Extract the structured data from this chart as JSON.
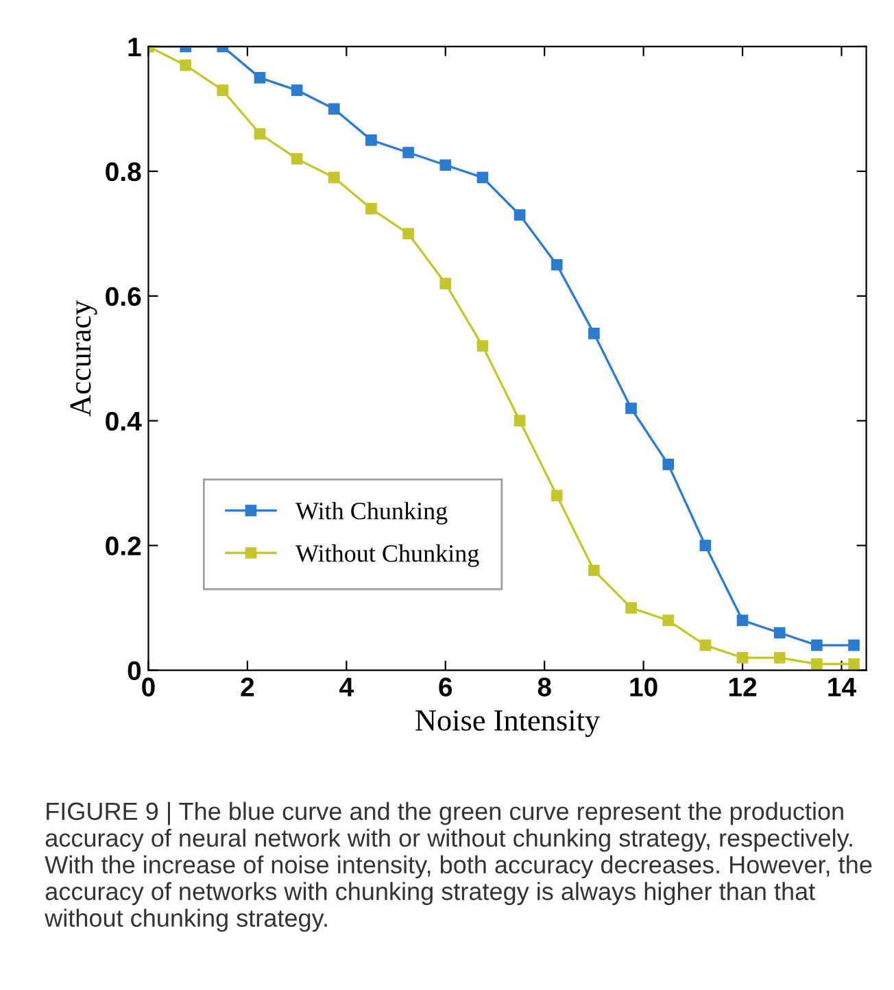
{
  "chart_data": {
    "type": "line",
    "xlabel": "Noise Intensity",
    "ylabel": "Accuracy",
    "x": [
      0,
      0.75,
      1.5,
      2.25,
      3,
      3.75,
      4.5,
      5.25,
      6,
      6.75,
      7.5,
      8.25,
      9,
      9.75,
      10.5,
      11.25,
      12,
      12.75,
      13.5,
      14.25
    ],
    "series": [
      {
        "name": "With Chunking",
        "color": "#2b7bd1",
        "values": [
          1,
          1,
          1,
          0.95,
          0.93,
          0.9,
          0.85,
          0.83,
          0.81,
          0.79,
          0.73,
          0.65,
          0.54,
          0.42,
          0.33,
          0.2,
          0.08,
          0.06,
          0.04,
          0.04
        ]
      },
      {
        "name": "Without Chunking",
        "color": "#c4c62b",
        "values": [
          1,
          0.97,
          0.93,
          0.86,
          0.82,
          0.79,
          0.74,
          0.7,
          0.62,
          0.52,
          0.4,
          0.28,
          0.16,
          0.1,
          0.08,
          0.04,
          0.02,
          0.02,
          0.01,
          0.01
        ]
      }
    ],
    "xlim": [
      0,
      14.5
    ],
    "ylim": [
      0,
      1
    ],
    "xticks": [
      0,
      2,
      4,
      6,
      8,
      10,
      12,
      14
    ],
    "yticks": [
      0,
      {
        "value": 0.2,
        "label": "0.2"
      },
      {
        "value": 0.4,
        "label": "0.4"
      },
      {
        "value": 0.6,
        "label": "0.6"
      },
      {
        "value": 0.8,
        "label": "0.8"
      },
      1
    ],
    "marker": "square",
    "line_style": "solid",
    "grid": false,
    "legend": "lower left",
    "annotations": [
      "FIGURE 9 | The blue curve and the green curve represent the production accuracy of neural network with or without chunking strategy, respectively. With the increase of noise intensity, both accuracy decreases. However, the accuracy of networks with chunking strategy is always higher than that without chunking strategy."
    ]
  }
}
